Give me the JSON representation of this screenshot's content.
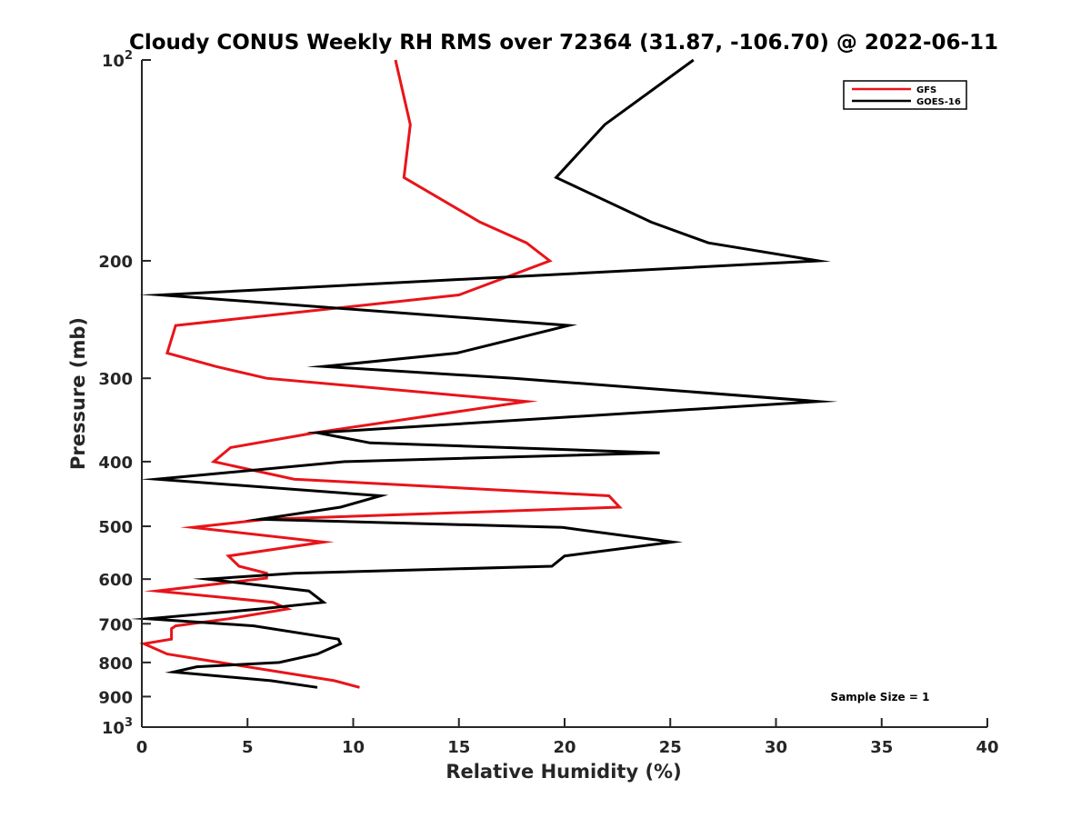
{
  "chart_data": {
    "type": "line",
    "title": "Cloudy CONUS Weekly RH RMS over 72364 (31.87, -106.70) @ 2022-06-11",
    "xlabel": "Relative Humidity (%)",
    "ylabel": "Pressure (mb)",
    "xlim": [
      0,
      40
    ],
    "ylim": [
      100,
      1000
    ],
    "y_scale": "log",
    "y_reversed": true,
    "grid": false,
    "legend_position": "top-right",
    "x_ticks": [
      "0",
      "5",
      "10",
      "15",
      "20",
      "25",
      "30",
      "35",
      "40"
    ],
    "y_ticks": [
      {
        "value": 100,
        "base": "10",
        "exp": "2"
      },
      {
        "value": 200,
        "label": "200"
      },
      {
        "value": 300,
        "label": "300"
      },
      {
        "value": 400,
        "label": "400"
      },
      {
        "value": 500,
        "label": "500"
      },
      {
        "value": 600,
        "label": "600"
      },
      {
        "value": 700,
        "label": "700"
      },
      {
        "value": 800,
        "label": "800"
      },
      {
        "value": 900,
        "label": "900"
      },
      {
        "value": 1000,
        "base": "10",
        "exp": "3"
      }
    ],
    "annotation": "Sample Size = 1",
    "series": [
      {
        "name": "GFS",
        "color": "#e8141a",
        "points": [
          [
            12.0,
            100
          ],
          [
            12.7,
            125
          ],
          [
            12.4,
            150
          ],
          [
            16.0,
            175
          ],
          [
            18.2,
            188
          ],
          [
            19.3,
            200
          ],
          [
            15.0,
            225
          ],
          [
            1.6,
            250
          ],
          [
            1.2,
            275
          ],
          [
            3.5,
            288
          ],
          [
            5.9,
            300
          ],
          [
            18.2,
            325
          ],
          [
            8.2,
            362
          ],
          [
            4.2,
            381
          ],
          [
            3.4,
            400
          ],
          [
            7.2,
            425
          ],
          [
            22.1,
            450
          ],
          [
            22.6,
            468
          ],
          [
            5.9,
            488
          ],
          [
            2.4,
            502
          ],
          [
            8.6,
            528
          ],
          [
            4.1,
            554
          ],
          [
            4.6,
            574
          ],
          [
            5.9,
            588
          ],
          [
            5.9,
            598
          ],
          [
            0.7,
            625
          ],
          [
            6.2,
            650
          ],
          [
            6.9,
            665
          ],
          [
            4.1,
            688
          ],
          [
            1.6,
            705
          ],
          [
            1.4,
            712
          ],
          [
            1.4,
            738
          ],
          [
            0.1,
            750
          ],
          [
            1.2,
            777
          ],
          [
            9.1,
            852
          ],
          [
            10.3,
            872
          ]
        ]
      },
      {
        "name": "GOES-16",
        "color": "#000000",
        "points": [
          [
            26.1,
            100
          ],
          [
            21.9,
            125
          ],
          [
            19.6,
            150
          ],
          [
            24.1,
            175
          ],
          [
            26.8,
            188
          ],
          [
            32.0,
            200
          ],
          [
            0.9,
            225
          ],
          [
            20.2,
            250
          ],
          [
            14.9,
            275
          ],
          [
            8.6,
            288
          ],
          [
            17.6,
            300
          ],
          [
            32.0,
            325
          ],
          [
            8.3,
            362
          ],
          [
            10.8,
            375
          ],
          [
            24.5,
            388
          ],
          [
            9.6,
            400
          ],
          [
            0.7,
            425
          ],
          [
            11.3,
            450
          ],
          [
            9.4,
            468
          ],
          [
            5.6,
            488
          ],
          [
            19.9,
            502
          ],
          [
            25.1,
            528
          ],
          [
            20.0,
            554
          ],
          [
            19.4,
            574
          ],
          [
            7.2,
            588
          ],
          [
            3.1,
            600
          ],
          [
            7.9,
            625
          ],
          [
            8.6,
            650
          ],
          [
            5.6,
            665
          ],
          [
            0.3,
            688
          ],
          [
            5.3,
            705
          ],
          [
            9.3,
            738
          ],
          [
            9.4,
            750
          ],
          [
            8.3,
            777
          ],
          [
            6.5,
            800
          ],
          [
            2.6,
            812
          ],
          [
            1.5,
            827
          ],
          [
            6.1,
            852
          ],
          [
            8.3,
            872
          ]
        ]
      }
    ]
  }
}
